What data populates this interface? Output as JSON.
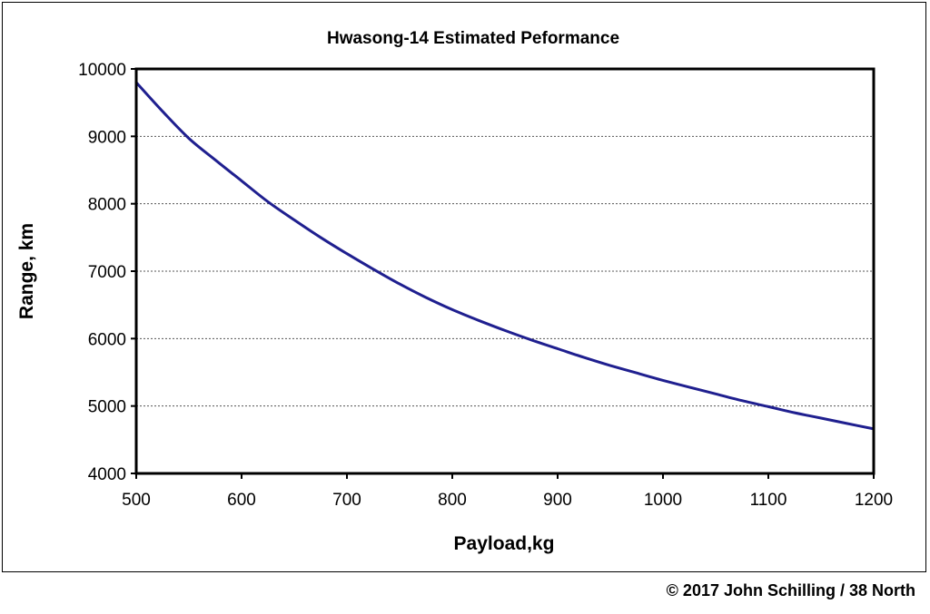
{
  "chart_data": {
    "type": "line",
    "title": "Hwasong-14 Estimated Peformance",
    "xlabel": "Payload,kg",
    "ylabel": "Range, km",
    "xlim": [
      500,
      1200
    ],
    "ylim": [
      4000,
      10000
    ],
    "x_ticks": [
      "500",
      "600",
      "700",
      "800",
      "900",
      "1000",
      "1100",
      "1200"
    ],
    "y_ticks": [
      "4000",
      "5000",
      "6000",
      "7000",
      "8000",
      "9000",
      "10000"
    ],
    "grid": "horizontal dotted",
    "legend": "none",
    "series": [
      {
        "color": "#1f1f8f",
        "x": [
          500,
          525,
          550,
          575,
          600,
          625,
          650,
          675,
          700,
          725,
          750,
          775,
          800,
          825,
          850,
          875,
          900,
          925,
          950,
          975,
          1000,
          1025,
          1050,
          1075,
          1100,
          1125,
          1150,
          1175,
          1200
        ],
        "y": [
          9800,
          9370,
          8970,
          8650,
          8340,
          8030,
          7760,
          7500,
          7260,
          7030,
          6810,
          6610,
          6430,
          6270,
          6120,
          5980,
          5850,
          5720,
          5600,
          5490,
          5380,
          5280,
          5180,
          5080,
          4990,
          4900,
          4820,
          4740,
          4660
        ]
      }
    ]
  },
  "credit": "© 2017 John Schilling / 38 North"
}
